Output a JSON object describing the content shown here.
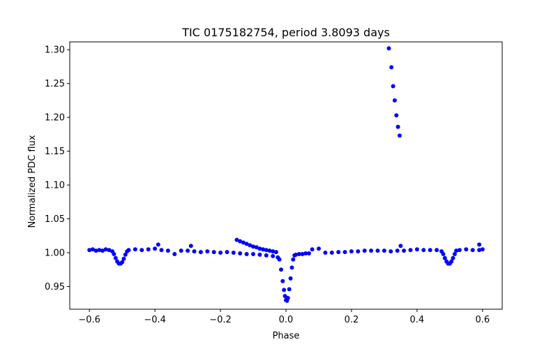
{
  "chart_data": {
    "type": "scatter",
    "title": "TIC 0175182754, period 3.8093 days",
    "xlabel": "Phase",
    "ylabel": "Normalized PDC flux",
    "xlim": [
      -0.66,
      0.66
    ],
    "ylim": [
      0.9165,
      1.3115
    ],
    "xticks": [
      -0.6,
      -0.4,
      -0.2,
      0.0,
      0.2,
      0.4,
      0.6
    ],
    "xtick_labels": [
      "−0.6",
      "−0.4",
      "−0.2",
      "0.0",
      "0.2",
      "0.4",
      "0.6"
    ],
    "yticks": [
      0.95,
      1.0,
      1.05,
      1.1,
      1.15,
      1.2,
      1.25,
      1.3
    ],
    "ytick_labels": [
      "0.95",
      "1.00",
      "1.05",
      "1.10",
      "1.15",
      "1.20",
      "1.25",
      "1.30"
    ],
    "grid": false,
    "series": [
      {
        "color": "#0000ff",
        "marker": "circle",
        "points": [
          [
            -0.6,
            1.004
          ],
          [
            -0.59,
            1.005
          ],
          [
            -0.58,
            1.003
          ],
          [
            -0.57,
            1.004
          ],
          [
            -0.56,
            1.003
          ],
          [
            -0.55,
            1.005
          ],
          [
            -0.54,
            1.004
          ],
          [
            -0.53,
            1.002
          ],
          [
            -0.525,
            0.998
          ],
          [
            -0.52,
            0.992
          ],
          [
            -0.515,
            0.987
          ],
          [
            -0.51,
            0.984
          ],
          [
            -0.505,
            0.984
          ],
          [
            -0.5,
            0.986
          ],
          [
            -0.495,
            0.991
          ],
          [
            -0.49,
            0.997
          ],
          [
            -0.485,
            1.002
          ],
          [
            -0.48,
            1.004
          ],
          [
            -0.46,
            1.005
          ],
          [
            -0.44,
            1.004
          ],
          [
            -0.42,
            1.005
          ],
          [
            -0.4,
            1.006
          ],
          [
            -0.39,
            1.012
          ],
          [
            -0.38,
            1.004
          ],
          [
            -0.36,
            1.003
          ],
          [
            -0.34,
            0.998
          ],
          [
            -0.32,
            1.003
          ],
          [
            -0.3,
            1.003
          ],
          [
            -0.29,
            1.01
          ],
          [
            -0.28,
            1.002
          ],
          [
            -0.26,
            1.001
          ],
          [
            -0.24,
            1.002
          ],
          [
            -0.22,
            1.001
          ],
          [
            -0.2,
            1.0
          ],
          [
            -0.18,
            1.001
          ],
          [
            -0.16,
            1.0
          ],
          [
            -0.14,
            0.999
          ],
          [
            -0.12,
            0.998
          ],
          [
            -0.1,
            0.998
          ],
          [
            -0.08,
            0.997
          ],
          [
            -0.06,
            0.996
          ],
          [
            -0.04,
            0.995
          ],
          [
            -0.025,
            0.993
          ],
          [
            -0.15,
            1.019
          ],
          [
            -0.14,
            1.017
          ],
          [
            -0.13,
            1.015
          ],
          [
            -0.12,
            1.013
          ],
          [
            -0.11,
            1.011
          ],
          [
            -0.1,
            1.009
          ],
          [
            -0.09,
            1.008
          ],
          [
            -0.08,
            1.006
          ],
          [
            -0.07,
            1.005
          ],
          [
            -0.06,
            1.004
          ],
          [
            -0.05,
            1.003
          ],
          [
            -0.04,
            1.002
          ],
          [
            -0.03,
            1.001
          ],
          [
            -0.02,
            0.99
          ],
          [
            -0.015,
            0.975
          ],
          [
            -0.01,
            0.958
          ],
          [
            -0.006,
            0.945
          ],
          [
            -0.003,
            0.936
          ],
          [
            0.0,
            0.93
          ],
          [
            0.003,
            0.929
          ],
          [
            0.006,
            0.933
          ],
          [
            0.01,
            0.946
          ],
          [
            0.014,
            0.962
          ],
          [
            0.018,
            0.978
          ],
          [
            0.022,
            0.99
          ],
          [
            0.026,
            0.996
          ],
          [
            0.03,
            0.997
          ],
          [
            0.04,
            0.998
          ],
          [
            0.05,
            0.998
          ],
          [
            0.06,
            0.999
          ],
          [
            0.07,
            0.999
          ],
          [
            0.08,
            1.005
          ],
          [
            0.1,
            1.006
          ],
          [
            0.12,
            1.0
          ],
          [
            0.14,
            1.0
          ],
          [
            0.16,
            1.001
          ],
          [
            0.18,
            1.001
          ],
          [
            0.2,
            1.002
          ],
          [
            0.22,
            1.002
          ],
          [
            0.24,
            1.003
          ],
          [
            0.26,
            1.003
          ],
          [
            0.28,
            1.003
          ],
          [
            0.3,
            1.003
          ],
          [
            0.32,
            1.002
          ],
          [
            0.34,
            1.003
          ],
          [
            0.35,
            1.01
          ],
          [
            0.36,
            1.003
          ],
          [
            0.38,
            1.004
          ],
          [
            0.4,
            1.005
          ],
          [
            0.42,
            1.004
          ],
          [
            0.44,
            1.004
          ],
          [
            0.46,
            1.004
          ],
          [
            0.475,
            1.002
          ],
          [
            0.48,
            0.998
          ],
          [
            0.485,
            0.992
          ],
          [
            0.49,
            0.987
          ],
          [
            0.495,
            0.984
          ],
          [
            0.5,
            0.984
          ],
          [
            0.505,
            0.987
          ],
          [
            0.51,
            0.992
          ],
          [
            0.515,
            0.998
          ],
          [
            0.52,
            1.003
          ],
          [
            0.53,
            1.004
          ],
          [
            0.55,
            1.005
          ],
          [
            0.57,
            1.004
          ],
          [
            0.59,
            1.004
          ],
          [
            0.59,
            1.012
          ],
          [
            0.6,
            1.005
          ],
          [
            0.314,
            1.302
          ],
          [
            0.322,
            1.274
          ],
          [
            0.327,
            1.246
          ],
          [
            0.332,
            1.225
          ],
          [
            0.337,
            1.203
          ],
          [
            0.342,
            1.186
          ],
          [
            0.347,
            1.173
          ]
        ]
      }
    ]
  }
}
